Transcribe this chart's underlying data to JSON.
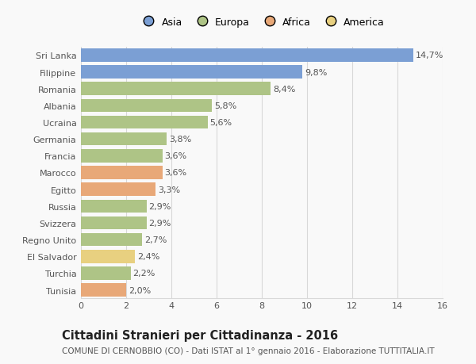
{
  "countries": [
    "Sri Lanka",
    "Filippine",
    "Romania",
    "Albania",
    "Ucraina",
    "Germania",
    "Francia",
    "Marocco",
    "Egitto",
    "Russia",
    "Svizzera",
    "Regno Unito",
    "El Salvador",
    "Turchia",
    "Tunisia"
  ],
  "values": [
    14.7,
    9.8,
    8.4,
    5.8,
    5.6,
    3.8,
    3.6,
    3.6,
    3.3,
    2.9,
    2.9,
    2.7,
    2.4,
    2.2,
    2.0
  ],
  "labels": [
    "14,7%",
    "9,8%",
    "8,4%",
    "5,8%",
    "5,6%",
    "3,8%",
    "3,6%",
    "3,6%",
    "3,3%",
    "2,9%",
    "2,9%",
    "2,7%",
    "2,4%",
    "2,2%",
    "2,0%"
  ],
  "continents": [
    "Asia",
    "Asia",
    "Europa",
    "Europa",
    "Europa",
    "Europa",
    "Europa",
    "Africa",
    "Africa",
    "Europa",
    "Europa",
    "Europa",
    "America",
    "Europa",
    "Africa"
  ],
  "colors": {
    "Asia": "#7b9fd4",
    "Europa": "#aec486",
    "Africa": "#e8a878",
    "America": "#e8d080"
  },
  "xlim": [
    0,
    16
  ],
  "xticks": [
    0,
    2,
    4,
    6,
    8,
    10,
    12,
    14,
    16
  ],
  "title": "Cittadini Stranieri per Cittadinanza - 2016",
  "subtitle": "COMUNE DI CERNOBBIO (CO) - Dati ISTAT al 1° gennaio 2016 - Elaborazione TUTTITALIA.IT",
  "background_color": "#f9f9f9",
  "grid_color": "#d8d8d8",
  "bar_height": 0.78,
  "label_fontsize": 8,
  "tick_fontsize": 8,
  "title_fontsize": 10.5,
  "subtitle_fontsize": 7.5,
  "legend_labels": [
    "Asia",
    "Europa",
    "Africa",
    "America"
  ]
}
